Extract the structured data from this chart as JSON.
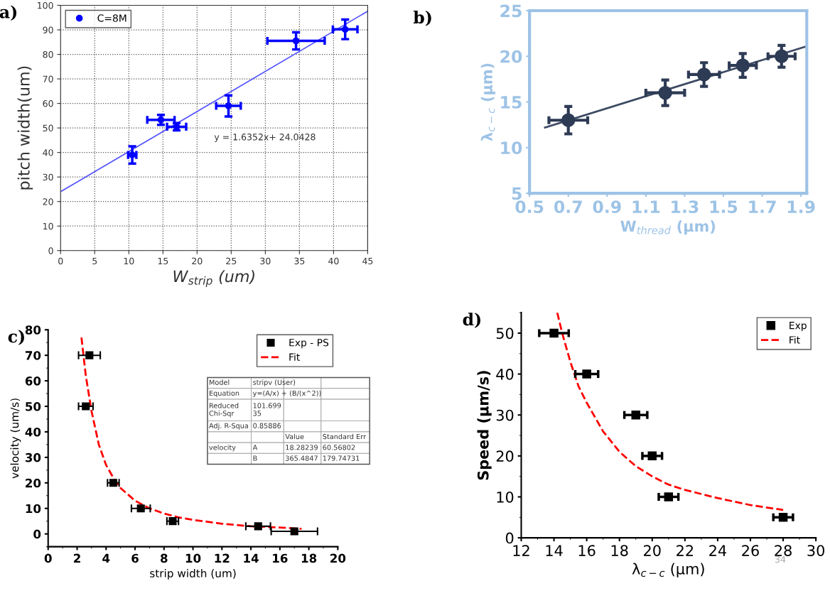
{
  "chart_data": [
    {
      "type": "scatter",
      "title": "a)",
      "xlabel": "W$_{strip}$ (um)",
      "ylabel": "pitch width(um)",
      "xlim": [
        0,
        45
      ],
      "xticks": [
        0,
        5,
        10,
        15,
        20,
        25,
        30,
        35,
        40,
        45
      ],
      "ylim": [
        0,
        100
      ],
      "yticks": [
        0,
        10,
        20,
        30,
        40,
        50,
        60,
        70,
        80,
        90,
        100
      ],
      "grid": true,
      "legend": "top left",
      "annotations": [
        "y = 1.6352x+ 24.0428"
      ],
      "series": [
        {
          "name": "C=8M",
          "marker": "circle",
          "color": "#0000ff",
          "x": [
            10.5,
            14.7,
            17,
            24.6,
            34.5,
            41.7
          ],
          "values": [
            39,
            53.3,
            50.5,
            59,
            85.5,
            90.2
          ],
          "errors": [
            3.5,
            2,
            1.5,
            4.3,
            3.5,
            4
          ],
          "xerrors": [
            0.6,
            2,
            1.4,
            1.8,
            4.2,
            1.8
          ]
        },
        {
          "type": "line",
          "color": "#5050ff",
          "line_style": "solid",
          "x": [
            0,
            45
          ],
          "values": [
            24,
            97.6
          ]
        }
      ]
    },
    {
      "type": "scatter",
      "title": "b)",
      "xlabel": "W$_{thread}$ (μm)",
      "ylabel": "λ$_{c−c}$ (μm)",
      "xlim": [
        0.5,
        1.93
      ],
      "xticks": [
        0.5,
        0.7,
        0.9,
        1.1,
        1.3,
        1.5,
        1.7,
        1.9
      ],
      "ylim": [
        5,
        25
      ],
      "yticks": [
        5,
        10,
        15,
        20,
        25
      ],
      "grid": false,
      "legend": false,
      "series": [
        {
          "color": "#2e3b55",
          "marker": "circle",
          "x": [
            0.7,
            1.2,
            1.4,
            1.6,
            1.8
          ],
          "values": [
            13,
            16,
            18,
            19,
            20
          ],
          "errors": [
            1.5,
            1.4,
            1.3,
            1.3,
            1.2
          ],
          "xerrors": [
            0.1,
            0.1,
            0.08,
            0.07,
            0.07
          ]
        },
        {
          "type": "line",
          "color": "#3d4a63",
          "line_style": "solid",
          "x": [
            0.58,
            1.93
          ],
          "values": [
            12.2,
            21.1
          ]
        }
      ]
    },
    {
      "type": "scatter",
      "title": "c)",
      "xlabel": "strip width (um)",
      "ylabel": "velocity (um/s)",
      "xlim": [
        0,
        20
      ],
      "xticks": [
        0,
        2,
        4,
        6,
        8,
        10,
        12,
        14,
        16,
        18,
        20
      ],
      "ylim": [
        -5,
        80
      ],
      "yticks": [
        0,
        10,
        20,
        30,
        40,
        50,
        60,
        70,
        80
      ],
      "grid": false,
      "legend": "top right",
      "annotations": [
        "Model",
        "stripv (User)",
        "Equation",
        "y=(A/x) + (B/(x^2))",
        "Reduced\nChi-Sqr",
        "101.699\n35",
        "Adj. R-Squa",
        "0.85886",
        "Value",
        "Standard Err",
        "velocity",
        "A",
        "18.28239",
        "60.56802",
        "B",
        "365.4847",
        "179.74731"
      ],
      "series": [
        {
          "name": "Exp - PS",
          "marker": "square",
          "color": "#000000",
          "x": [
            2.85,
            2.6,
            4.5,
            6.4,
            8.6,
            14.5,
            17
          ],
          "values": [
            70,
            50,
            20,
            10,
            5,
            3,
            1
          ],
          "xerrors": [
            0.75,
            0.5,
            0.4,
            0.65,
            0.4,
            0.85,
            1.6
          ]
        },
        {
          "type": "line",
          "name": "Fit",
          "color": "#ff0000",
          "line_style": "dashed",
          "x": [
            2.3,
            2.6,
            3,
            3.5,
            4,
            4.5,
            5,
            6,
            7,
            8,
            9,
            10,
            12,
            14,
            16,
            17.5
          ],
          "values": [
            77,
            62,
            48,
            35,
            27,
            22,
            18,
            13,
            10,
            8,
            6.5,
            5.5,
            4,
            3,
            2.5,
            2
          ]
        }
      ]
    },
    {
      "type": "scatter",
      "title": "d)",
      "xlabel": "λ$_{c−c}$ (μm)",
      "ylabel": "Speed (μm/s)",
      "xlim": [
        12,
        30
      ],
      "xticks": [
        12,
        14,
        16,
        18,
        20,
        22,
        24,
        26,
        28,
        30
      ],
      "ylim": [
        0,
        55
      ],
      "yticks": [
        0,
        10,
        20,
        30,
        40,
        50
      ],
      "grid": false,
      "legend": "top right",
      "annotations": [
        "34"
      ],
      "series": [
        {
          "name": "Exp",
          "marker": "square",
          "color": "#000000",
          "x": [
            14,
            16,
            19,
            20,
            21,
            28
          ],
          "values": [
            50,
            40,
            30,
            20,
            10,
            5
          ],
          "xerrors": [
            0.9,
            0.7,
            0.7,
            0.6,
            0.6,
            0.6
          ]
        },
        {
          "type": "line",
          "name": "Fit",
          "color": "#ff0000",
          "line_style": "dashed",
          "x": [
            14.2,
            14.5,
            15,
            15.5,
            16,
            17,
            18,
            19,
            20,
            21,
            22,
            24,
            26,
            28
          ],
          "values": [
            55,
            50,
            43,
            37,
            33,
            26,
            21,
            17.5,
            15,
            13,
            11.7,
            9.7,
            8,
            6.8
          ]
        }
      ]
    }
  ]
}
